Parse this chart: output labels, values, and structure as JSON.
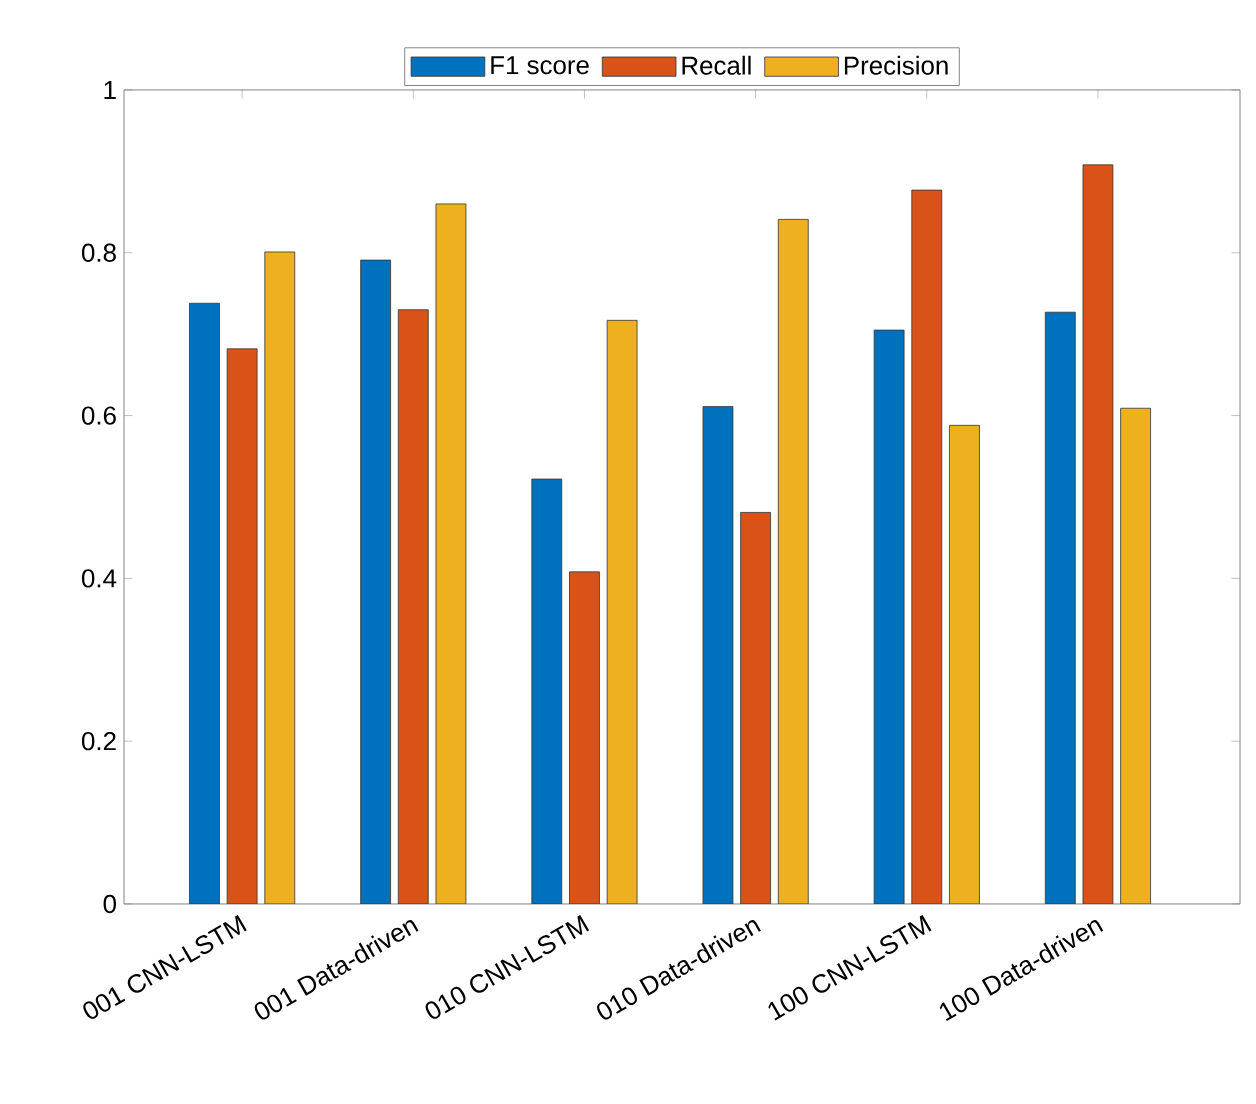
{
  "chart_data": {
    "type": "bar",
    "categories": [
      "001 CNN-LSTM",
      "001 Data-driven",
      "010 CNN-LSTM",
      "010 Data-driven",
      "100 CNN-LSTM",
      "100 Data-driven"
    ],
    "series": [
      {
        "name": "F1 score",
        "color": "#0072bd",
        "values": [
          0.738,
          0.791,
          0.522,
          0.611,
          0.705,
          0.727
        ]
      },
      {
        "name": "Recall",
        "color": "#d95319",
        "values": [
          0.682,
          0.73,
          0.408,
          0.481,
          0.877,
          0.908
        ]
      },
      {
        "name": "Precision",
        "color": "#edb120",
        "values": [
          0.801,
          0.86,
          0.717,
          0.841,
          0.588,
          0.609
        ]
      }
    ],
    "ylim": [
      0,
      1
    ],
    "yticks": [
      0,
      0.2,
      0.4,
      0.6,
      0.8,
      1
    ],
    "grid": false,
    "legend": "top"
  }
}
